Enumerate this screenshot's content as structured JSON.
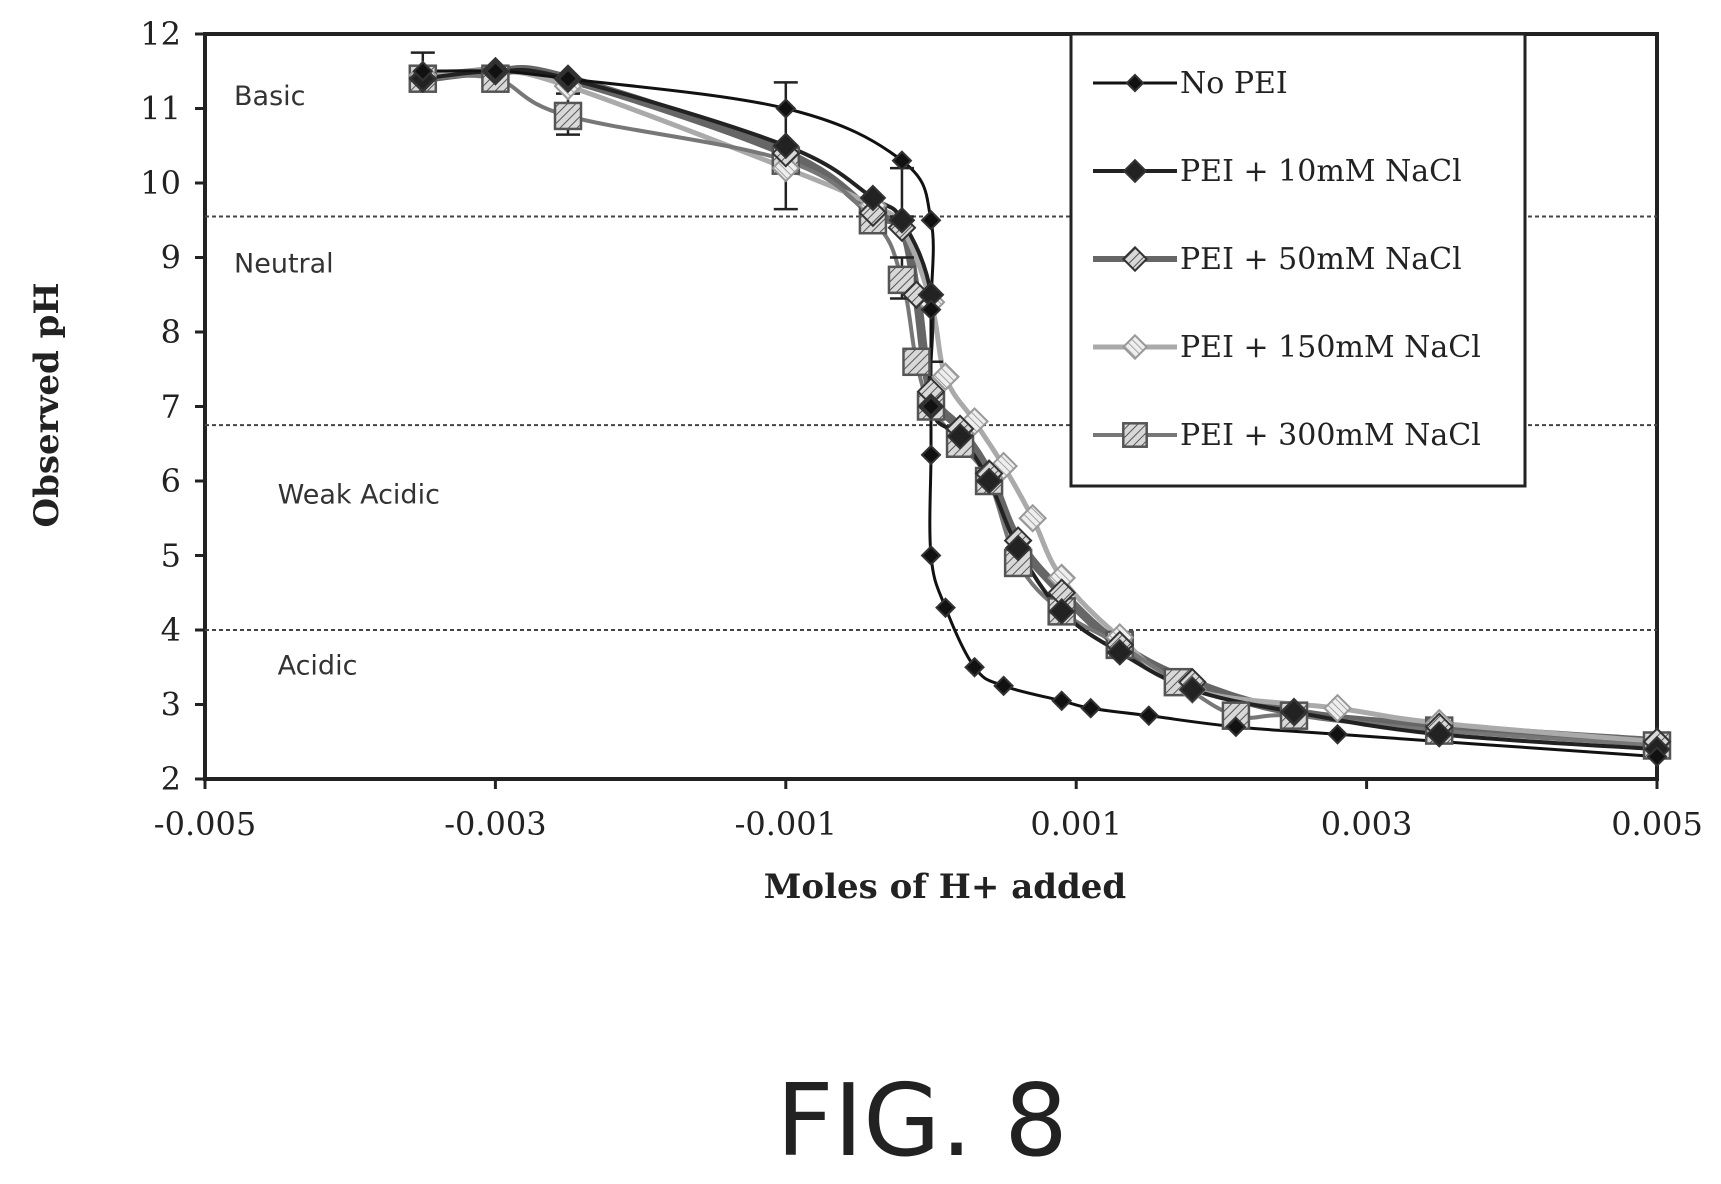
{
  "chart_data": {
    "type": "line",
    "xlabel": "Moles of H+ added",
    "ylabel": "Observed pH",
    "xlim": [
      -0.005,
      0.005
    ],
    "ylim": [
      2,
      12
    ],
    "x_ticks": [
      "-0.005",
      "-0.003",
      "-0.001",
      "0.001",
      "0.003",
      "0.005"
    ],
    "x_tick_values": [
      -0.005,
      -0.003,
      -0.001,
      0.001,
      0.003,
      0.005
    ],
    "y_ticks": [
      "2",
      "3",
      "4",
      "5",
      "6",
      "7",
      "8",
      "9",
      "10",
      "11",
      "12"
    ],
    "y_tick_values": [
      2,
      3,
      4,
      5,
      6,
      7,
      8,
      9,
      10,
      11,
      12
    ],
    "grid": false,
    "legend_position": "top-right",
    "reference_lines_y": [
      9.55,
      6.75,
      4.0
    ],
    "regions": [
      {
        "label": "Basic",
        "x": -0.0048,
        "y": 11.05
      },
      {
        "label": "Neutral",
        "x": -0.0048,
        "y": 8.8
      },
      {
        "label": "Weak Acidic",
        "x": -0.0045,
        "y": 5.7
      },
      {
        "label": "Acidic",
        "x": -0.0045,
        "y": 3.4
      }
    ],
    "series": [
      {
        "name": "No PEI",
        "marker": "diamond-small",
        "x": [
          -0.0035,
          -0.003,
          -0.0025,
          -0.001,
          -0.0002,
          0.0,
          0.0,
          0.0,
          0.0,
          0.0,
          0.0001,
          0.0003,
          0.0005,
          0.0009,
          0.0011,
          0.0015,
          0.0021,
          0.0028,
          0.005
        ],
        "y": [
          11.5,
          11.5,
          11.4,
          11.0,
          10.3,
          9.5,
          8.3,
          7.0,
          6.35,
          5.0,
          4.3,
          3.5,
          3.25,
          3.05,
          2.95,
          2.85,
          2.7,
          2.6,
          2.3
        ]
      },
      {
        "name": "PEI + 10mM NaCl",
        "marker": "diamond",
        "x": [
          -0.0035,
          -0.003,
          -0.0025,
          -0.001,
          -0.0004,
          -0.0002,
          0.0,
          0.0,
          0.0002,
          0.0004,
          0.0006,
          0.0009,
          0.0013,
          0.0018,
          0.0025,
          0.0035,
          0.005
        ],
        "y": [
          11.4,
          11.5,
          11.4,
          10.5,
          9.8,
          9.5,
          8.5,
          7.0,
          6.6,
          6.0,
          5.1,
          4.25,
          3.7,
          3.2,
          2.9,
          2.6,
          2.4
        ]
      },
      {
        "name": "PEI + 50mM NaCl",
        "marker": "diamond-hatched",
        "x": [
          -0.0035,
          -0.003,
          -0.0025,
          -0.001,
          -0.0004,
          -0.0002,
          -0.0001,
          0.0,
          0.0002,
          0.0004,
          0.0006,
          0.0009,
          0.0013,
          0.0018,
          0.0025,
          0.0035,
          0.005
        ],
        "y": [
          11.4,
          11.5,
          11.4,
          10.4,
          9.6,
          9.4,
          8.5,
          7.2,
          6.7,
          6.1,
          5.2,
          4.5,
          3.8,
          3.3,
          2.9,
          2.7,
          2.5
        ]
      },
      {
        "name": "PEI + 150mM NaCl",
        "marker": "diamond-open",
        "x": [
          -0.0035,
          -0.003,
          -0.0025,
          -0.001,
          -0.0004,
          -0.0002,
          0.0,
          0.0001,
          0.0003,
          0.0005,
          0.0007,
          0.0009,
          0.0013,
          0.0018,
          0.0028,
          0.0035,
          0.005
        ],
        "y": [
          11.45,
          11.5,
          11.3,
          10.2,
          9.7,
          9.4,
          8.4,
          7.4,
          6.8,
          6.2,
          5.5,
          4.7,
          3.9,
          3.2,
          2.95,
          2.75,
          2.5
        ]
      },
      {
        "name": "PEI + 300mM NaCl",
        "marker": "square",
        "x": [
          -0.0035,
          -0.003,
          -0.0025,
          -0.001,
          -0.0004,
          -0.0002,
          -0.0001,
          0.0,
          0.0002,
          0.0004,
          0.0006,
          0.0009,
          0.0013,
          0.0017,
          0.0021,
          0.0025,
          0.0035,
          0.005
        ],
        "y": [
          11.4,
          11.4,
          10.9,
          10.3,
          9.5,
          8.7,
          7.6,
          7.0,
          6.5,
          6.0,
          4.9,
          4.25,
          3.8,
          3.3,
          2.85,
          2.85,
          2.65,
          2.45
        ]
      }
    ],
    "error_bars": [
      {
        "x": -0.0035,
        "y": 11.5,
        "low": 11.35,
        "high": 11.75
      },
      {
        "x": -0.0025,
        "y": 10.9,
        "low": 10.65,
        "high": 11.2
      },
      {
        "x": -0.001,
        "y": 10.3,
        "low": 9.65,
        "high": 11.35
      },
      {
        "x": -0.0002,
        "y": 9.7,
        "low": 9.55,
        "high": 10.2
      },
      {
        "x": -0.0002,
        "y": 8.7,
        "low": 8.45,
        "high": 9.0
      },
      {
        "x": 0.0,
        "y": 7.3,
        "low": 6.95,
        "high": 7.6
      }
    ]
  },
  "legend": {
    "items": [
      "No PEI",
      "PEI + 10mM NaCl",
      "PEI + 50mM NaCl",
      "PEI + 150mM NaCl",
      "PEI + 300mM NaCl"
    ]
  },
  "figure": {
    "caption": "FIG. 8"
  }
}
